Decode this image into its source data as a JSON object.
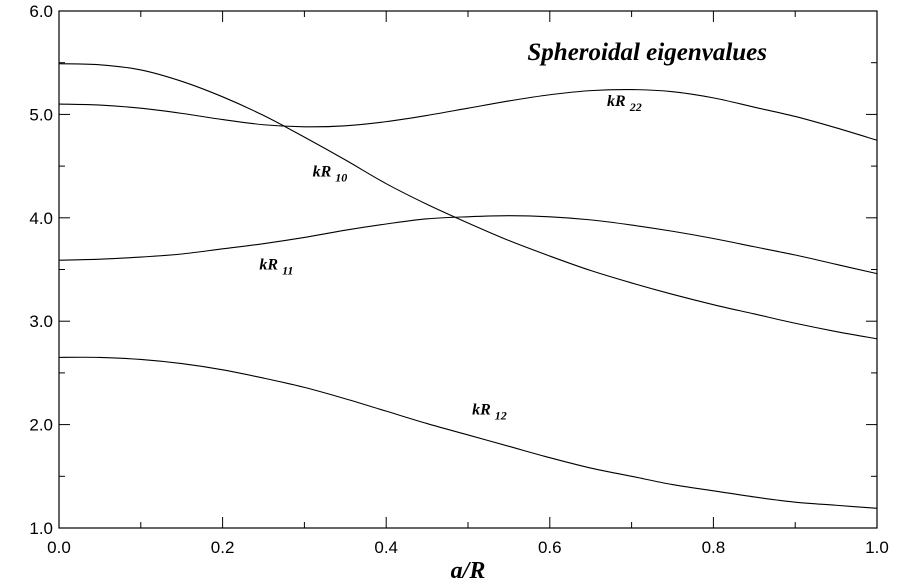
{
  "chart_data": {
    "type": "line",
    "title": "Spheroidal eigenvalues",
    "xlabel": "a/R",
    "ylabel": "",
    "xlim": [
      0.0,
      1.0
    ],
    "ylim": [
      1.0,
      6.0
    ],
    "xticks": [
      "0.0",
      "0.2",
      "0.4",
      "0.6",
      "0.8",
      "1.0"
    ],
    "yticks": [
      "1.0",
      "2.0",
      "3.0",
      "4.0",
      "5.0",
      "6.0"
    ],
    "grid": false,
    "series": [
      {
        "name": "kR",
        "subscript": "10",
        "label_at": [
          0.31,
          4.4
        ],
        "x": [
          0.0,
          0.05,
          0.1,
          0.15,
          0.2,
          0.25,
          0.3,
          0.35,
          0.4,
          0.45,
          0.5,
          0.55,
          0.6,
          0.65,
          0.7,
          0.75,
          0.8,
          0.85,
          0.9,
          0.95,
          1.0
        ],
        "y": [
          5.49,
          5.48,
          5.43,
          5.32,
          5.17,
          4.99,
          4.78,
          4.56,
          4.33,
          4.13,
          3.95,
          3.78,
          3.63,
          3.49,
          3.37,
          3.26,
          3.16,
          3.07,
          2.98,
          2.9,
          2.83
        ]
      },
      {
        "name": "kR",
        "subscript": "22",
        "label_at": [
          0.67,
          5.08
        ],
        "x": [
          0.0,
          0.05,
          0.1,
          0.15,
          0.2,
          0.25,
          0.3,
          0.35,
          0.4,
          0.45,
          0.5,
          0.55,
          0.6,
          0.65,
          0.7,
          0.75,
          0.8,
          0.85,
          0.9,
          0.95,
          1.0
        ],
        "y": [
          5.1,
          5.09,
          5.06,
          5.01,
          4.95,
          4.9,
          4.88,
          4.89,
          4.93,
          4.99,
          5.06,
          5.13,
          5.19,
          5.23,
          5.24,
          5.22,
          5.16,
          5.07,
          4.98,
          4.87,
          4.75
        ]
      },
      {
        "name": "kR",
        "subscript": "11",
        "label_at": [
          0.245,
          3.5
        ],
        "x": [
          0.0,
          0.05,
          0.1,
          0.15,
          0.2,
          0.25,
          0.3,
          0.35,
          0.4,
          0.45,
          0.5,
          0.55,
          0.6,
          0.65,
          0.7,
          0.75,
          0.8,
          0.85,
          0.9,
          0.95,
          1.0
        ],
        "y": [
          3.59,
          3.6,
          3.62,
          3.65,
          3.7,
          3.75,
          3.81,
          3.88,
          3.94,
          3.99,
          4.01,
          4.02,
          4.01,
          3.98,
          3.93,
          3.87,
          3.8,
          3.72,
          3.64,
          3.55,
          3.46
        ]
      },
      {
        "name": "kR",
        "subscript": "12",
        "label_at": [
          0.505,
          2.1
        ],
        "x": [
          0.0,
          0.05,
          0.1,
          0.15,
          0.2,
          0.25,
          0.3,
          0.35,
          0.4,
          0.45,
          0.5,
          0.55,
          0.6,
          0.65,
          0.7,
          0.75,
          0.8,
          0.85,
          0.9,
          0.95,
          1.0
        ],
        "y": [
          2.65,
          2.65,
          2.63,
          2.59,
          2.53,
          2.45,
          2.36,
          2.25,
          2.13,
          2.01,
          1.9,
          1.79,
          1.68,
          1.58,
          1.5,
          1.42,
          1.36,
          1.3,
          1.25,
          1.22,
          1.19
        ]
      }
    ]
  }
}
